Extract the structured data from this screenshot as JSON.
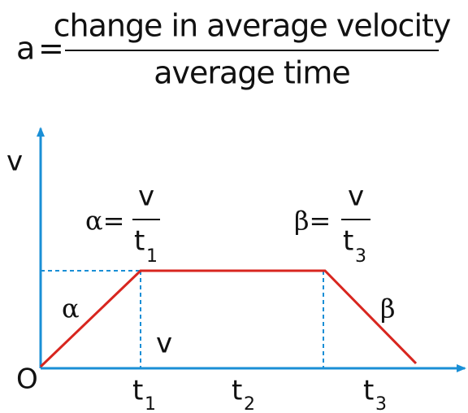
{
  "formula": {
    "lhs": "a",
    "equals": "=",
    "numerator": "change in average velocity",
    "denominator": "average time"
  },
  "graph": {
    "y_label": "v",
    "origin": "O",
    "alpha_formula": {
      "lhs": "α=",
      "numerator": "v",
      "denominator": "t",
      "sub": "1"
    },
    "beta_formula": {
      "lhs": "β=",
      "numerator": "v",
      "denominator": "t",
      "sub": "3"
    },
    "alpha": "α",
    "beta": "β",
    "area_label": "v",
    "x_labels": [
      {
        "text": "t",
        "sub": "1"
      },
      {
        "text": "t",
        "sub": "2"
      },
      {
        "text": "t",
        "sub": "3"
      }
    ]
  }
}
